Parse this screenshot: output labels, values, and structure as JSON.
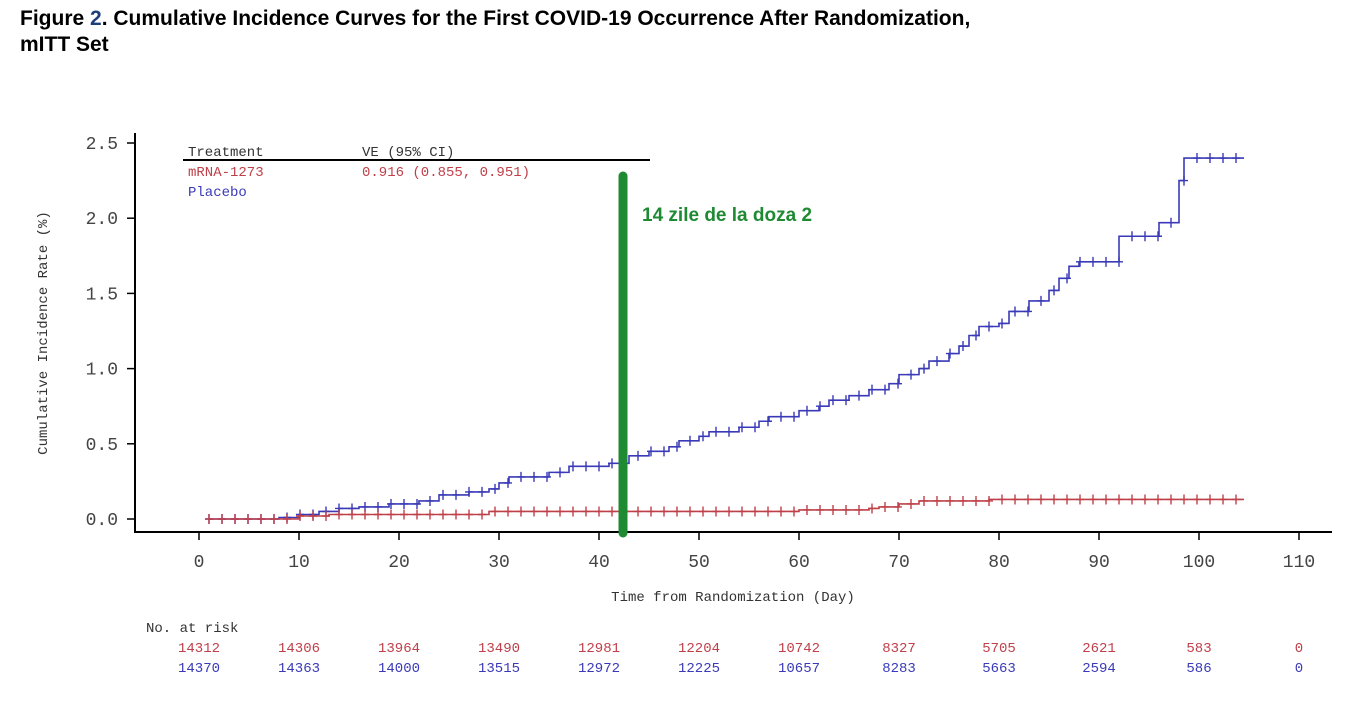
{
  "title": {
    "prefix": "Figure ",
    "number": "2",
    "text": ". Cumulative Incidence Curves for the First COVID-19 Occurrence After Randomization,",
    "line2": "mITT Set"
  },
  "colors": {
    "mrna": "#c0404a",
    "placebo": "#3a3ab8",
    "annotation": "#1e8a32",
    "axis": "#000000"
  },
  "chart_data": {
    "type": "line",
    "title": "Cumulative Incidence Curves for the First COVID-19 Occurrence After Randomization, mITT Set",
    "xlabel": "Time from Randomization (Day)",
    "ylabel": "Cumulative Incidence Rate (%)",
    "xlim": [
      0,
      110
    ],
    "ylim": [
      0,
      2.5
    ],
    "xticks": [
      "0",
      "10",
      "20",
      "30",
      "40",
      "50",
      "60",
      "70",
      "80",
      "90",
      "100",
      "110"
    ],
    "yticks": [
      "0.0",
      "0.5",
      "1.0",
      "1.5",
      "2.0",
      "2.5"
    ],
    "legend": {
      "header_treatment": "Treatment",
      "header_ve": "VE (95% CI)",
      "placement": "top-left",
      "entries": [
        {
          "name": "mRNA-1273",
          "ve": "0.916 (0.855, 0.951)"
        },
        {
          "name": "Placebo",
          "ve": ""
        }
      ]
    },
    "series": [
      {
        "name": "mRNA-1273",
        "color": "#c0404a",
        "steps": [
          [
            1,
            0
          ],
          [
            10,
            0.02
          ],
          [
            13,
            0.03
          ],
          [
            29,
            0.05
          ],
          [
            50,
            0.05
          ],
          [
            60,
            0.06
          ],
          [
            67,
            0.07
          ],
          [
            68,
            0.08
          ],
          [
            70,
            0.1
          ],
          [
            72,
            0.12
          ],
          [
            79,
            0.13
          ],
          [
            104.5,
            0.13
          ]
        ]
      },
      {
        "name": "Placebo",
        "color": "#3a3ab8",
        "steps": [
          [
            1,
            0
          ],
          [
            8,
            0.01
          ],
          [
            10,
            0.03
          ],
          [
            12,
            0.05
          ],
          [
            14,
            0.07
          ],
          [
            16,
            0.08
          ],
          [
            19,
            0.1
          ],
          [
            22,
            0.12
          ],
          [
            24,
            0.16
          ],
          [
            27,
            0.18
          ],
          [
            29,
            0.2
          ],
          [
            30,
            0.24
          ],
          [
            31,
            0.28
          ],
          [
            35,
            0.31
          ],
          [
            37,
            0.35
          ],
          [
            41,
            0.37
          ],
          [
            43,
            0.42
          ],
          [
            45,
            0.45
          ],
          [
            47,
            0.48
          ],
          [
            48,
            0.52
          ],
          [
            50,
            0.55
          ],
          [
            51,
            0.58
          ],
          [
            54,
            0.61
          ],
          [
            56,
            0.65
          ],
          [
            57,
            0.68
          ],
          [
            60,
            0.72
          ],
          [
            62,
            0.75
          ],
          [
            63,
            0.79
          ],
          [
            65,
            0.82
          ],
          [
            67,
            0.86
          ],
          [
            69,
            0.9
          ],
          [
            70,
            0.96
          ],
          [
            72,
            1.0
          ],
          [
            73,
            1.05
          ],
          [
            75,
            1.1
          ],
          [
            76,
            1.15
          ],
          [
            77,
            1.22
          ],
          [
            78,
            1.28
          ],
          [
            80,
            1.3
          ],
          [
            81,
            1.38
          ],
          [
            83,
            1.45
          ],
          [
            85,
            1.52
          ],
          [
            86,
            1.6
          ],
          [
            87,
            1.68
          ],
          [
            88,
            1.71
          ],
          [
            92,
            1.88
          ],
          [
            96,
            1.97
          ],
          [
            98,
            2.25
          ],
          [
            98.5,
            2.4
          ],
          [
            104.5,
            2.4
          ]
        ]
      }
    ],
    "annotation": {
      "day": 42.4,
      "text": "14 zile de la doza 2"
    },
    "at_risk": {
      "label": "No. at risk",
      "mRNA-1273": [
        "14312",
        "14306",
        "13964",
        "13490",
        "12981",
        "12204",
        "10742",
        "8327",
        "5705",
        "2621",
        "583",
        "0"
      ],
      "Placebo": [
        "14370",
        "14363",
        "14000",
        "13515",
        "12972",
        "12225",
        "10657",
        "8283",
        "5663",
        "2594",
        "586",
        "0"
      ]
    }
  }
}
